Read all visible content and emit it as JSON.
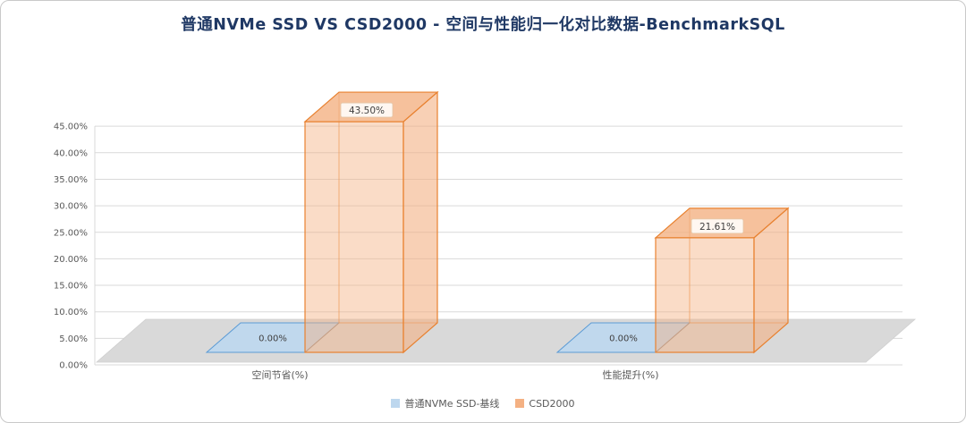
{
  "title": "普通NVMe SSD VS CSD2000 - 空间与性能归一化对比数据-BenchmarkSQL",
  "chart_data": {
    "type": "bar",
    "style": "3d",
    "categories": [
      "空间节省(%)",
      "性能提升(%)"
    ],
    "series": [
      {
        "name": "普通NVMe SSD-基线",
        "values": [
          0.0,
          0.0
        ],
        "data_labels": [
          "0.00%",
          "0.00%"
        ],
        "color": "#BDD7EE",
        "stroke": "#5B9BD5"
      },
      {
        "name": "CSD2000",
        "values": [
          43.5,
          21.61
        ],
        "data_labels": [
          "43.50%",
          "21.61%"
        ],
        "color": "#F4B183",
        "stroke": "#E8812F"
      }
    ],
    "y_axis": {
      "min": 0,
      "max": 45,
      "step": 5,
      "tick_labels": [
        "0.00%",
        "5.00%",
        "10.00%",
        "15.00%",
        "20.00%",
        "25.00%",
        "30.00%",
        "35.00%",
        "40.00%",
        "45.00%"
      ]
    },
    "grid": true,
    "legend_position": "bottom",
    "colors": {
      "title": "#1F3864",
      "axis_text": "#595959",
      "gridline": "#D9D9D9",
      "floor": "#D9D9D9"
    }
  }
}
